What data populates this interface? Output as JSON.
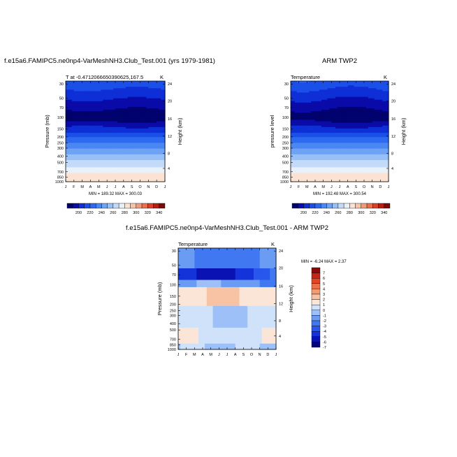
{
  "chart_data": [
    {
      "type": "heatmap",
      "title": "f.e15a6.FAMIPC5.ne0np4-VarMeshNH3.Club_Test.001 (yrs 1979-1981)",
      "subtitle_left": "T at -0.4712066650390625,167.5",
      "subtitle_right": "K",
      "ylabel": "Pressure (mb)",
      "ylabel_right": "Height (km)",
      "x_categories": [
        "J",
        "F",
        "M",
        "A",
        "M",
        "J",
        "J",
        "A",
        "S",
        "O",
        "N",
        "D",
        "J"
      ],
      "y_pressure_ticks": [
        "30",
        "50",
        "70",
        "100",
        "150",
        "200",
        "250",
        "300",
        "400",
        "500",
        "700",
        "850",
        "1000"
      ],
      "y_height_ticks": [
        "24",
        "20",
        "16",
        "12",
        "8",
        "4"
      ],
      "minmax_text": "MIN = 189.32  MAX = 300.03",
      "colorbar_labels": [
        "200",
        "220",
        "240",
        "260",
        "280",
        "300",
        "320",
        "340"
      ],
      "contour_levels": [
        190,
        200,
        210,
        220,
        230,
        240,
        250,
        260,
        270,
        280,
        290,
        300,
        310,
        320,
        330,
        340,
        350
      ],
      "min": 189.32,
      "max": 300.03
    },
    {
      "type": "heatmap",
      "title": "ARM TWP2",
      "subtitle_left": "Temperature",
      "subtitle_right": "K",
      "ylabel": "pressure level",
      "ylabel_right": "Height (km)",
      "x_categories": [
        "J",
        "F",
        "M",
        "A",
        "M",
        "J",
        "J",
        "A",
        "S",
        "O",
        "N",
        "D",
        "J"
      ],
      "y_pressure_ticks": [
        "30",
        "50",
        "70",
        "100",
        "150",
        "200",
        "250",
        "300",
        "400",
        "500",
        "700",
        "850",
        "1000"
      ],
      "y_height_ticks": [
        "24",
        "20",
        "16",
        "12",
        "8",
        "4"
      ],
      "minmax_text": "MIN = 192.48  MAX = 300.54",
      "colorbar_labels": [
        "200",
        "220",
        "240",
        "260",
        "280",
        "300",
        "320",
        "340"
      ],
      "contour_levels": [
        190,
        200,
        210,
        220,
        230,
        240,
        250,
        260,
        270,
        280,
        290,
        300,
        310,
        320,
        330,
        340,
        350
      ],
      "min": 192.48,
      "max": 300.54
    },
    {
      "type": "heatmap",
      "title": "f.e15a6.FAMIPC5.ne0np4-VarMeshNH3.Club_Test.001 - ARM TWP2",
      "subtitle_left": "Temperature",
      "subtitle_right": "K",
      "ylabel": "Pressure (mb)",
      "ylabel_right": "Height (km)",
      "x_categories": [
        "J",
        "F",
        "M",
        "A",
        "M",
        "J",
        "J",
        "A",
        "S",
        "O",
        "N",
        "D",
        "J"
      ],
      "y_pressure_ticks": [
        "30",
        "50",
        "70",
        "100",
        "150",
        "200",
        "250",
        "300",
        "400",
        "500",
        "700",
        "850",
        "1000"
      ],
      "y_height_ticks": [
        "24",
        "20",
        "16",
        "12",
        "8",
        "4"
      ],
      "minmax_text": "MIN =  -6.24  MAX =   2.37",
      "colorbar_labels": [
        "7",
        "6",
        "5",
        "4",
        "3",
        "2",
        "1",
        "0",
        "-1",
        "-2",
        "-3",
        "-4",
        "-5",
        "-6",
        "-7"
      ],
      "contour_levels": [
        -8,
        -7,
        -6,
        -5,
        -4,
        -3,
        -2,
        -1,
        0,
        1,
        2,
        3,
        4,
        5,
        6,
        7,
        8
      ],
      "min": -6.24,
      "max": 2.37
    }
  ],
  "colors": {
    "palette": [
      "#02026e",
      "#0b0ba8",
      "#0e2fd6",
      "#1b4fe8",
      "#2e6af0",
      "#4b87f2",
      "#6fa3f4",
      "#98c0f6",
      "#c3dbf8",
      "#e8f0fa",
      "#fbe2d2",
      "#f7c2a6",
      "#f19a78",
      "#ea6f4c",
      "#d9412a",
      "#b51f14",
      "#7c0a08"
    ],
    "diff_palette": [
      "#040479",
      "#0a12b4",
      "#1433d9",
      "#2857ec",
      "#4178f1",
      "#6a9cf4",
      "#9cc0f7",
      "#cfe2fa",
      "#fbe5d6",
      "#f7c3a4",
      "#f29b72",
      "#ec7048",
      "#e34527",
      "#c52416",
      "#8c0a07"
    ]
  }
}
